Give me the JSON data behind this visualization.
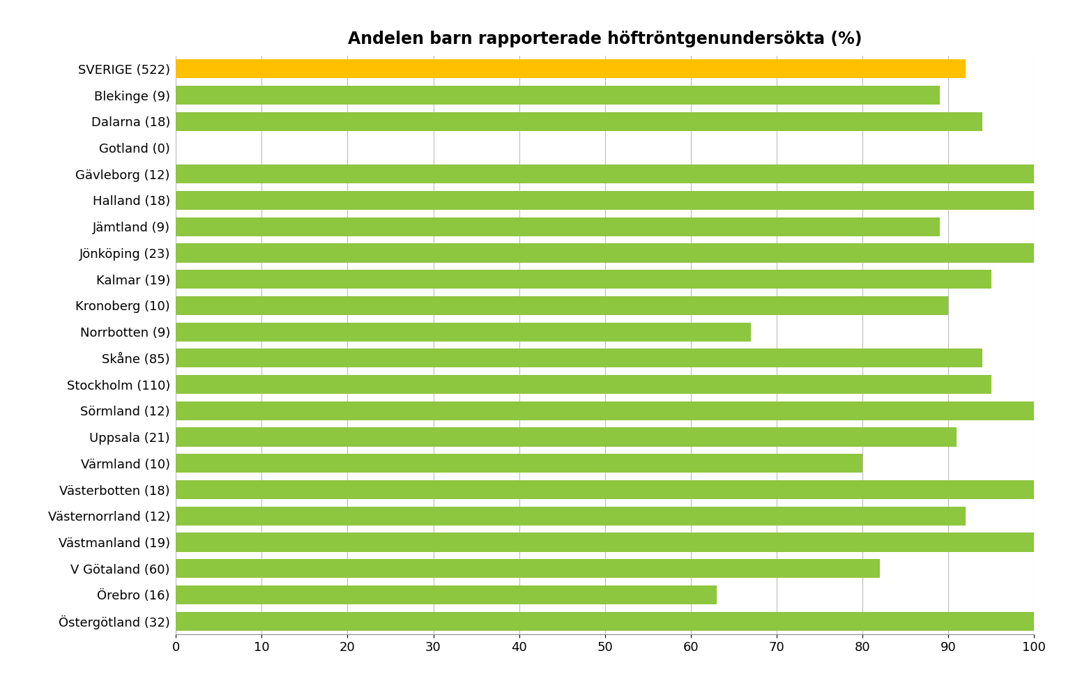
{
  "title": "Andelen barn rapporterade höftröntgenundersökta (%)",
  "categories": [
    "SVERIGE (522)",
    "Blekinge (9)",
    "Dalarna (18)",
    "Gotland (0)",
    "Gävleborg (12)",
    "Halland (18)",
    "Jämtland (9)",
    "Jönköping (23)",
    "Kalmar (19)",
    "Kronoberg (10)",
    "Norrbotten (9)",
    "Skåne (85)",
    "Stockholm (110)",
    "Sörmland (12)",
    "Uppsala (21)",
    "Värmland (10)",
    "Västerbotten (18)",
    "Västernorrland (12)",
    "Västmanland (19)",
    "V Götaland (60)",
    "Örebro (16)",
    "Östergötland (32)"
  ],
  "values": [
    92,
    89,
    94,
    0,
    100,
    100,
    89,
    100,
    95,
    90,
    67,
    94,
    95,
    100,
    91,
    80,
    100,
    92,
    100,
    82,
    63,
    100
  ],
  "bar_colors": [
    "#FFC000",
    "#8DC63F",
    "#8DC63F",
    "#8DC63F",
    "#8DC63F",
    "#8DC63F",
    "#8DC63F",
    "#8DC63F",
    "#8DC63F",
    "#8DC63F",
    "#8DC63F",
    "#8DC63F",
    "#8DC63F",
    "#8DC63F",
    "#8DC63F",
    "#8DC63F",
    "#8DC63F",
    "#8DC63F",
    "#8DC63F",
    "#8DC63F",
    "#8DC63F",
    "#8DC63F"
  ],
  "xlim": [
    0,
    100
  ],
  "xticks": [
    0,
    10,
    20,
    30,
    40,
    50,
    60,
    70,
    80,
    90,
    100
  ],
  "background_color": "#FFFFFF",
  "grid_color": "#BBBBBB",
  "title_fontsize": 17,
  "tick_fontsize": 13,
  "label_fontsize": 13,
  "bar_height": 0.72
}
